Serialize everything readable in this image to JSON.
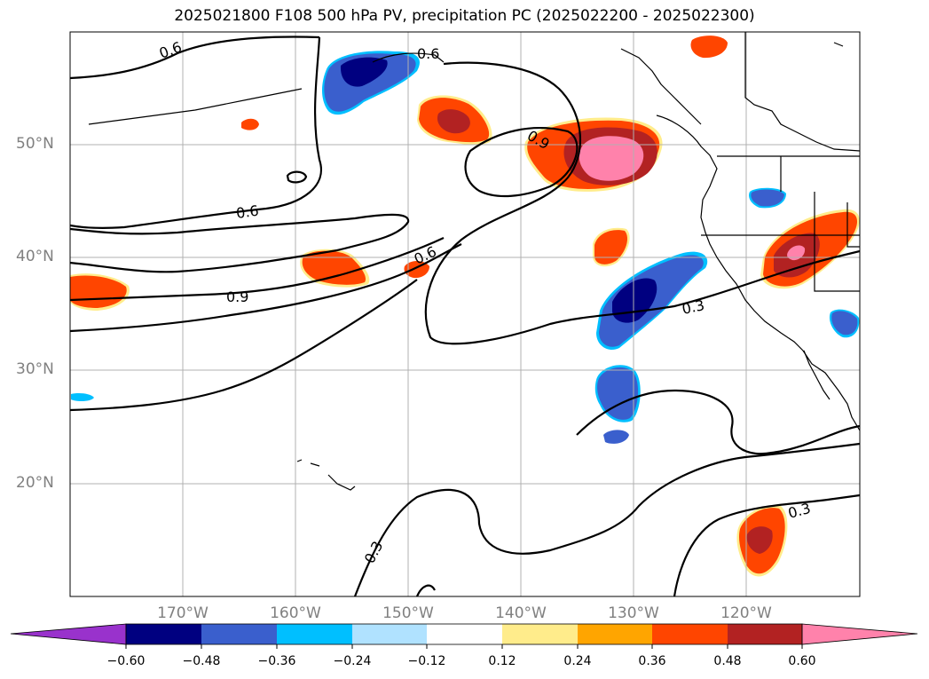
{
  "title": "2025021800 F108 500 hPa PV, precipitation PC (2025022200 - 2025022300)",
  "lat_labels": [
    "50°N",
    "40°N",
    "30°N",
    "20°N"
  ],
  "lon_labels": [
    "170°W",
    "160°W",
    "150°W",
    "140°W",
    "130°W",
    "120°W"
  ],
  "contour_labels": [
    "0.6",
    "0.6",
    "0.6",
    "0.9",
    "0.6",
    "0.9",
    "0.3",
    "0.3",
    "0.3"
  ],
  "colorbar": {
    "ticks": [
      "−0.60",
      "−0.48",
      "−0.36",
      "−0.24",
      "−0.12",
      "0.12",
      "0.24",
      "0.36",
      "0.48",
      "0.60"
    ],
    "colors": [
      "#9932cc",
      "#000080",
      "#3a5fcd",
      "#00bfff",
      "#b0e2ff",
      "#ffffff",
      "#ffec8b",
      "#ffa500",
      "#ff4500",
      "#b22222",
      "#ff82ab"
    ]
  },
  "map": {
    "projection": "lat-lon",
    "lon_range": [
      -180,
      -110
    ],
    "lat_range": [
      10,
      60
    ],
    "field_colors": {
      "neg_strong": "#000080",
      "neg_mid": "#3a5fcd",
      "neg_weak": "#00bfff",
      "pos_weak": "#ffec8b",
      "pos_mid": "#ff4500",
      "pos_strong": "#b22222",
      "pos_max": "#ff82ab"
    }
  }
}
